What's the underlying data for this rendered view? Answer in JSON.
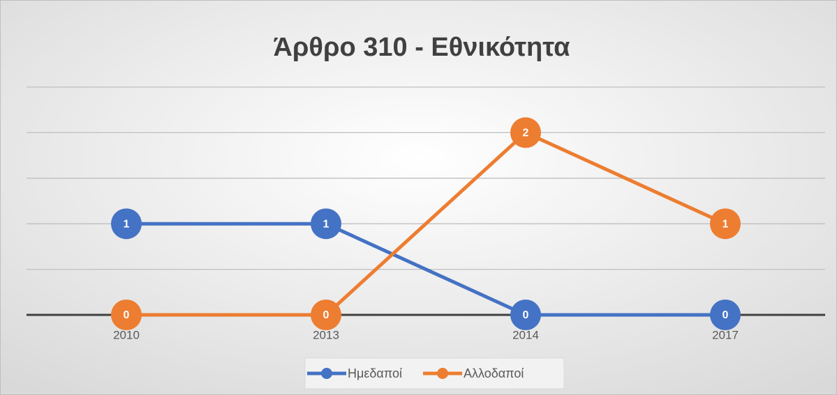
{
  "chart_data": {
    "type": "line",
    "title": "Άρθρο 310 - Εθνικότητα",
    "categories": [
      "2010",
      "2013",
      "2014",
      "2017"
    ],
    "series": [
      {
        "name": "Ημεδαποί",
        "color": "#4472c4",
        "values": [
          1,
          1,
          0,
          0
        ]
      },
      {
        "name": "Αλλοδαποί",
        "color": "#ed7d31",
        "values": [
          0,
          0,
          2,
          1
        ]
      }
    ],
    "ylim": [
      0,
      2.5
    ],
    "yticks": [
      0,
      0.5,
      1,
      1.5,
      2,
      2.5
    ],
    "grid": true,
    "legend": "bottom"
  }
}
